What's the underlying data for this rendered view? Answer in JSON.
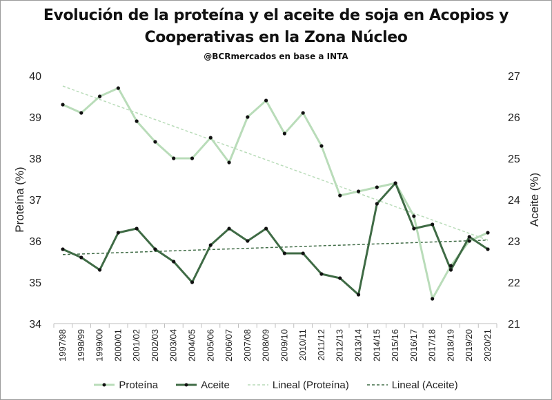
{
  "chart_data": {
    "type": "line",
    "title_line1": "Evolución de la proteína y el aceite de soja en Acopios y",
    "title_line2": "Cooperativas en la Zona Núcleo",
    "subtitle": "@BCRmercados en base a INTA",
    "categories": [
      "1997/98",
      "1998/99",
      "1999/00",
      "2000/01",
      "2001/02",
      "2002/03",
      "2003/04",
      "2004/05",
      "2005/06",
      "2006/07",
      "2007/08",
      "2008/09",
      "2009/10",
      "2010/11",
      "2011/12",
      "2012/13",
      "2013/14",
      "2014/15",
      "2015/16",
      "2016/17",
      "2017/18",
      "2018/19",
      "2019/20",
      "2020/21"
    ],
    "ylabel_left": "Proteína (%)",
    "ylabel_right": "Aceite (%)",
    "ylim_left": [
      34,
      40
    ],
    "ylim_right": [
      21,
      27
    ],
    "yticks_left": [
      34,
      35,
      36,
      37,
      38,
      39,
      40
    ],
    "yticks_right": [
      21,
      22,
      23,
      24,
      25,
      26,
      27
    ],
    "series": [
      {
        "name": "Proteína",
        "axis": "left",
        "color": "#b9dcb9",
        "values": [
          39.3,
          39.1,
          39.5,
          39.7,
          38.9,
          38.4,
          38.0,
          38.0,
          38.5,
          37.9,
          39.0,
          39.4,
          38.6,
          39.1,
          38.3,
          37.1,
          37.2,
          37.3,
          37.4,
          36.6,
          34.6,
          35.4,
          36.0,
          36.2
        ]
      },
      {
        "name": "Aceite",
        "axis": "right",
        "color": "#3f6b45",
        "values": [
          22.8,
          22.6,
          22.3,
          23.2,
          23.3,
          22.8,
          22.5,
          22.0,
          22.9,
          23.3,
          23.0,
          23.3,
          22.7,
          22.7,
          22.2,
          22.1,
          21.7,
          23.9,
          24.4,
          23.3,
          23.4,
          22.3,
          23.1,
          22.8
        ]
      },
      {
        "name": "Lineal (Proteína)",
        "axis": "left",
        "style": "dashed",
        "color": "#b9dcb9",
        "trend_start": 39.75,
        "trend_end": 36.02
      },
      {
        "name": "Lineal (Aceite)",
        "axis": "right",
        "style": "dashed",
        "color": "#3f6b45",
        "trend_start": 22.67,
        "trend_end": 23.02
      }
    ],
    "legend": [
      "Proteína",
      "Aceite",
      "Lineal (Proteína)",
      "Lineal (Aceite)"
    ],
    "legend_position": "bottom",
    "grid": false
  }
}
